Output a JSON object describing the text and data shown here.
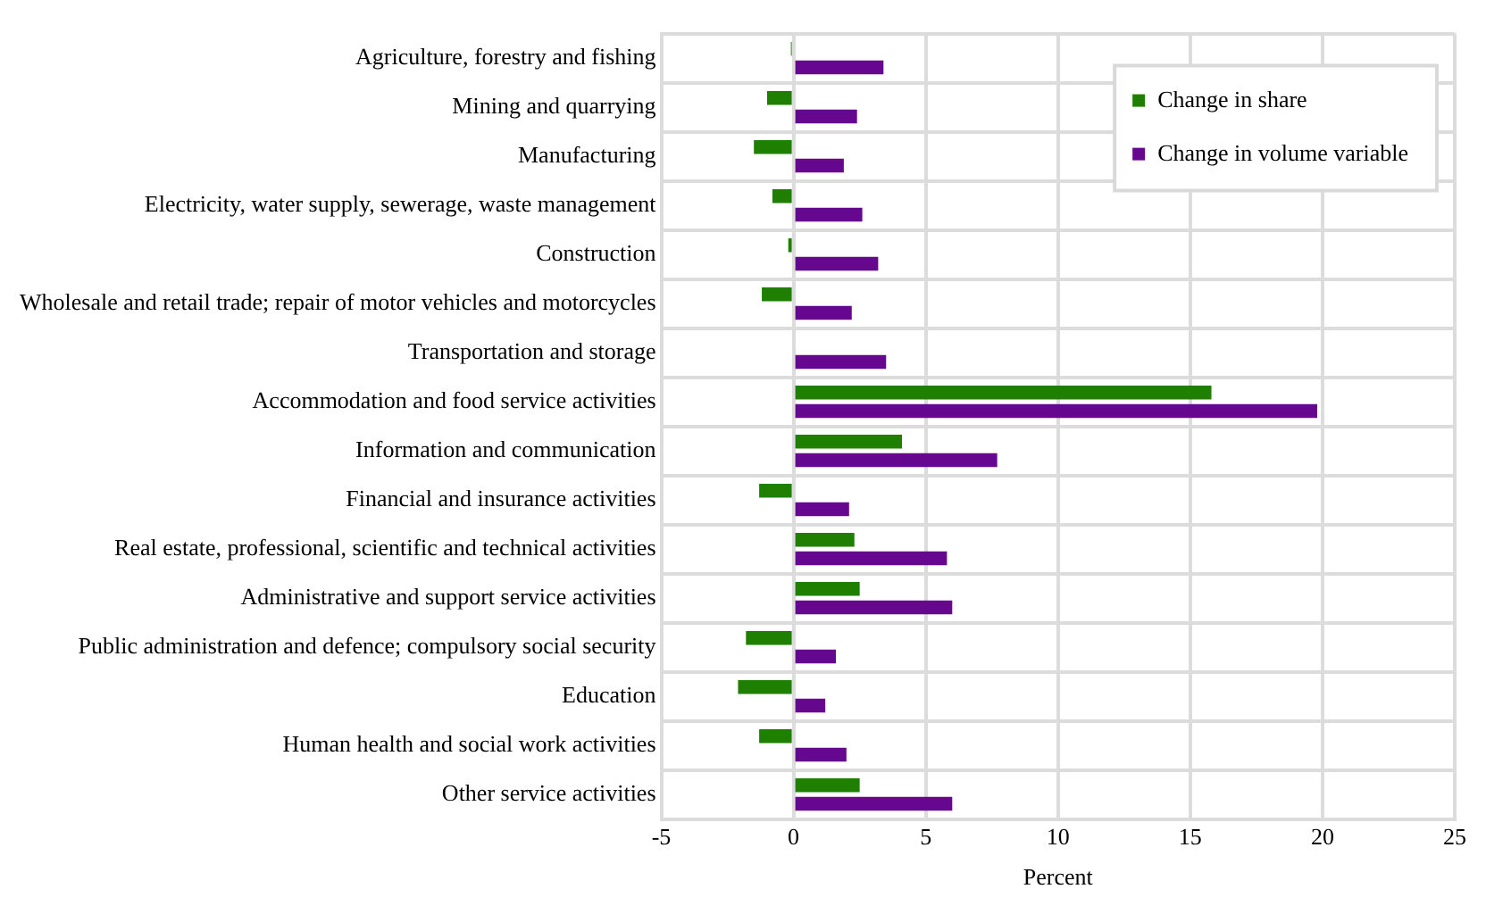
{
  "chart_data": {
    "type": "bar",
    "orientation": "horizontal",
    "xlabel": "Percent",
    "categories": [
      "Agriculture, forestry and fishing",
      "Mining and quarrying",
      "Manufacturing",
      "Electricity, water supply, sewerage, waste management",
      "Construction",
      "Wholesale and retail trade; repair of motor vehicles and motorcycles",
      "Transportation and storage",
      "Accommodation and food service activities",
      "Information and communication",
      "Financial and insurance activities",
      "Real estate, professional, scientific and technical activities",
      "Administrative and support service activities",
      "Public administration and defence; compulsory social security",
      "Education",
      "Human health and social work activities",
      "Other service activities"
    ],
    "series": [
      {
        "name": "Change in share",
        "color": "#1e7f00",
        "values": [
          -0.1,
          -1.0,
          -1.5,
          -0.8,
          -0.2,
          -1.2,
          0,
          15.8,
          4.1,
          -1.3,
          2.3,
          2.5,
          -1.8,
          -2.1,
          -1.3,
          2.5
        ]
      },
      {
        "name": "Change in volume variable",
        "color": "#65088f",
        "values": [
          3.4,
          2.4,
          1.9,
          2.6,
          3.2,
          2.2,
          3.5,
          19.8,
          7.7,
          2.1,
          5.8,
          6.0,
          1.6,
          1.2,
          2.0,
          6.0
        ]
      }
    ],
    "xlim": [
      -5,
      25
    ],
    "xticks": [
      -5,
      0,
      5,
      10,
      15,
      20,
      25
    ],
    "grid": true,
    "legend": "top right"
  }
}
